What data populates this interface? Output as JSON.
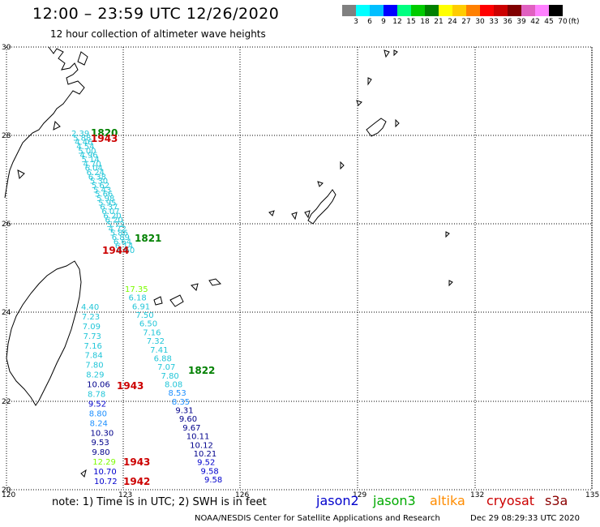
{
  "header": {
    "title": "12:00 – 23:59 UTC 12/26/2020",
    "subtitle": "12 hour collection of altimeter wave heights"
  },
  "colorbar": {
    "labels": [
      "3",
      "6",
      "9",
      "12",
      "15",
      "18",
      "21",
      "24",
      "27",
      "30",
      "33",
      "36",
      "39",
      "42",
      "45",
      "70"
    ],
    "unit": "(ft)",
    "colors": [
      "#808080",
      "#00ffff",
      "#00bfff",
      "#0000ff",
      "#00ff80",
      "#00cc00",
      "#008000",
      "#ffff00",
      "#ffcc00",
      "#ff8000",
      "#ff0000",
      "#cc0000",
      "#800000",
      "#e060c0",
      "#ff80ff",
      "#000000"
    ]
  },
  "axes": {
    "x_labels": [
      "120",
      "123",
      "126",
      "129",
      "132",
      "135"
    ],
    "y_labels": [
      "30",
      "28",
      "26",
      "24",
      "22",
      "20"
    ]
  },
  "tracks": {
    "left_upper": {
      "color": "#22c6d8",
      "values": [
        "2.39",
        "5.88",
        "4.46",
        "4.54",
        "5.00",
        "4.96",
        "5.14",
        "4.70",
        "6.04",
        "6.24",
        "6.38",
        "5.30",
        "5.62",
        "5.43",
        "5.66",
        "5.98",
        "5.95",
        "6.37",
        "6.07",
        "6.20",
        "6.20",
        "5.72",
        "4.72",
        "5.86",
        "6.89",
        "6.64",
        "6.14",
        "6.60"
      ]
    },
    "left_lower": {
      "values": [
        "4.40",
        "7.23",
        "7.09",
        "7.73",
        "7.16",
        "7.84",
        "7.80",
        "8.29",
        "10.06",
        "8.78",
        "9.52",
        "8.80",
        "8.24",
        "10.30",
        "9.53",
        "9.80",
        "12.29",
        "10.70",
        "10.72"
      ],
      "colors": [
        "#22c6d8",
        "#22c6d8",
        "#22c6d8",
        "#22c6d8",
        "#22c6d8",
        "#22c6d8",
        "#22c6d8",
        "#22c6d8",
        "#00008b",
        "#22c6d8",
        "#0000cd",
        "#1e90ff",
        "#1e90ff",
        "#00008b",
        "#00008b",
        "#00008b",
        "#7cfc00",
        "#0000cd",
        "#0000cd"
      ]
    },
    "right_lower": {
      "values": [
        "17.35",
        "6.18",
        "6.91",
        "7.50",
        "6.50",
        "7.16",
        "7.32",
        "7.41",
        "6.88",
        "7.07",
        "7.80",
        "8.08",
        "8.53",
        "8.35",
        "9.31",
        "9.60",
        "9.67",
        "10.11",
        "10.12",
        "10.21",
        "9.52",
        "9.58",
        "9.58"
      ],
      "colors": [
        "#7cfc00",
        "#22c6d8",
        "#22c6d8",
        "#22c6d8",
        "#22c6d8",
        "#22c6d8",
        "#22c6d8",
        "#22c6d8",
        "#22c6d8",
        "#22c6d8",
        "#22c6d8",
        "#22c6d8",
        "#1e90ff",
        "#1e90ff",
        "#00008b",
        "#00008b",
        "#00008b",
        "#00008b",
        "#00008b",
        "#00008b",
        "#0000cd",
        "#0000cd",
        "#0000cd"
      ]
    }
  },
  "time_labels": [
    {
      "text": "1820",
      "color": "#008000"
    },
    {
      "text": "1943",
      "color": "#cc0000"
    },
    {
      "text": "1821",
      "color": "#008000"
    },
    {
      "text": "1944",
      "color": "#cc0000"
    },
    {
      "text": "1822",
      "color": "#008000"
    },
    {
      "text": "1943",
      "color": "#cc0000"
    },
    {
      "text": "1943",
      "color": "#cc0000"
    },
    {
      "text": "1942",
      "color": "#cc0000"
    }
  ],
  "footer": {
    "note": "note:  1) Time is in UTC;  2) SWH is in feet",
    "satellites": [
      {
        "name": "jason2",
        "color": "#0000cc"
      },
      {
        "name": "jason3",
        "color": "#00aa00"
      },
      {
        "name": "altika",
        "color": "#ff8c00"
      },
      {
        "name": "cryosat",
        "color": "#cc0000"
      },
      {
        "name": "s3a",
        "color": "#8b0000"
      }
    ],
    "credit": "NOAA/NESDIS Center for Satellite Applications and Research",
    "timestamp": "Dec 29 08:29:33 UTC 2020"
  }
}
